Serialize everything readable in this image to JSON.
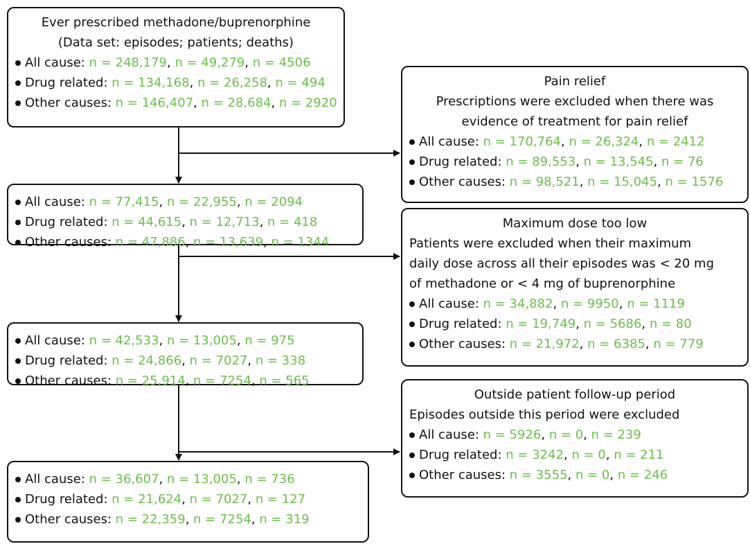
{
  "separator": ", ",
  "left_boxes": [
    {
      "lines": [
        "Ever prescribed methadone/buprenorphine",
        "(Data set: episodes; patients; deaths)"
      ],
      "items": [
        {
          "label": "All cause:",
          "counts": [
            "n = 248,179",
            "n = 49,279",
            "n = 4506"
          ]
        },
        {
          "label": "Drug related:",
          "counts": [
            "n = 134,168",
            "n = 26,258",
            "n = 494"
          ]
        },
        {
          "label": "Other causes:",
          "counts": [
            "n = 146,407",
            "n = 28,684",
            "n = 2920"
          ]
        }
      ]
    },
    {
      "lines": [],
      "items": [
        {
          "label": "All cause:",
          "counts": [
            "n = 77,415",
            "n = 22,955",
            "n = 2094"
          ]
        },
        {
          "label": "Drug related:",
          "counts": [
            "n = 44,615",
            "n = 12,713",
            "n = 418"
          ]
        },
        {
          "label": "Other causes:",
          "counts": [
            "n = 47,886",
            "n = 13,639",
            "n = 1344"
          ]
        }
      ]
    },
    {
      "lines": [],
      "items": [
        {
          "label": "All cause:",
          "counts": [
            "n = 42,533",
            "n = 13,005",
            "n = 975"
          ]
        },
        {
          "label": "Drug related:",
          "counts": [
            "n = 24,866",
            "n = 7027",
            "n = 338"
          ]
        },
        {
          "label": "Other causes:",
          "counts": [
            "n = 25,914",
            "n = 7254",
            "n = 565"
          ]
        }
      ]
    },
    {
      "lines": [],
      "items": [
        {
          "label": "All cause:",
          "counts": [
            "n = 36,607",
            "n = 13,005",
            "n = 736"
          ]
        },
        {
          "label": "Drug related:",
          "counts": [
            "n = 21,624",
            "n = 7027",
            "n = 127"
          ]
        },
        {
          "label": "Other causes:",
          "counts": [
            "n = 22,359",
            "n = 7254",
            "n = 319"
          ]
        }
      ]
    }
  ],
  "right_boxes": [
    {
      "title": "Pain relief",
      "lines": [
        "Prescriptions were excluded when there was",
        "evidence of treatment for pain relief"
      ],
      "items": [
        {
          "label": "All cause:",
          "counts": [
            "n = 170,764",
            "n = 26,324",
            "n = 2412"
          ]
        },
        {
          "label": "Drug related:",
          "counts": [
            "n = 89,553",
            "n = 13,545",
            "n = 76"
          ]
        },
        {
          "label": "Other causes:",
          "counts": [
            "n = 98,521",
            "n = 15,045",
            "n = 1576"
          ]
        }
      ]
    },
    {
      "title": "Maximum dose too low",
      "lines": [
        "Patients were excluded when their maximum",
        "daily dose across all their episodes was < 20 mg",
        "of methadone or < 4 mg of buprenorphine"
      ],
      "items": [
        {
          "label": "All cause:",
          "counts": [
            "n = 34,882",
            "n = 9950",
            "n = 1119"
          ]
        },
        {
          "label": "Drug related:",
          "counts": [
            "n = 19,749",
            "n = 5686",
            "n = 80"
          ]
        },
        {
          "label": "Other causes:",
          "counts": [
            "n = 21,972",
            "n = 6385",
            "n = 779"
          ]
        }
      ]
    },
    {
      "title": "Outside patient follow-up period",
      "lines": [
        "Episodes outside this period were excluded"
      ],
      "items": [
        {
          "label": "All cause:",
          "counts": [
            "n = 5926",
            "n = 0",
            "n = 239"
          ]
        },
        {
          "label": "Drug related:",
          "counts": [
            "n = 3242",
            "n = 0",
            "n = 211"
          ]
        },
        {
          "label": "Other causes:",
          "counts": [
            "n = 3555",
            "n = 0",
            "n = 246"
          ]
        }
      ]
    }
  ]
}
